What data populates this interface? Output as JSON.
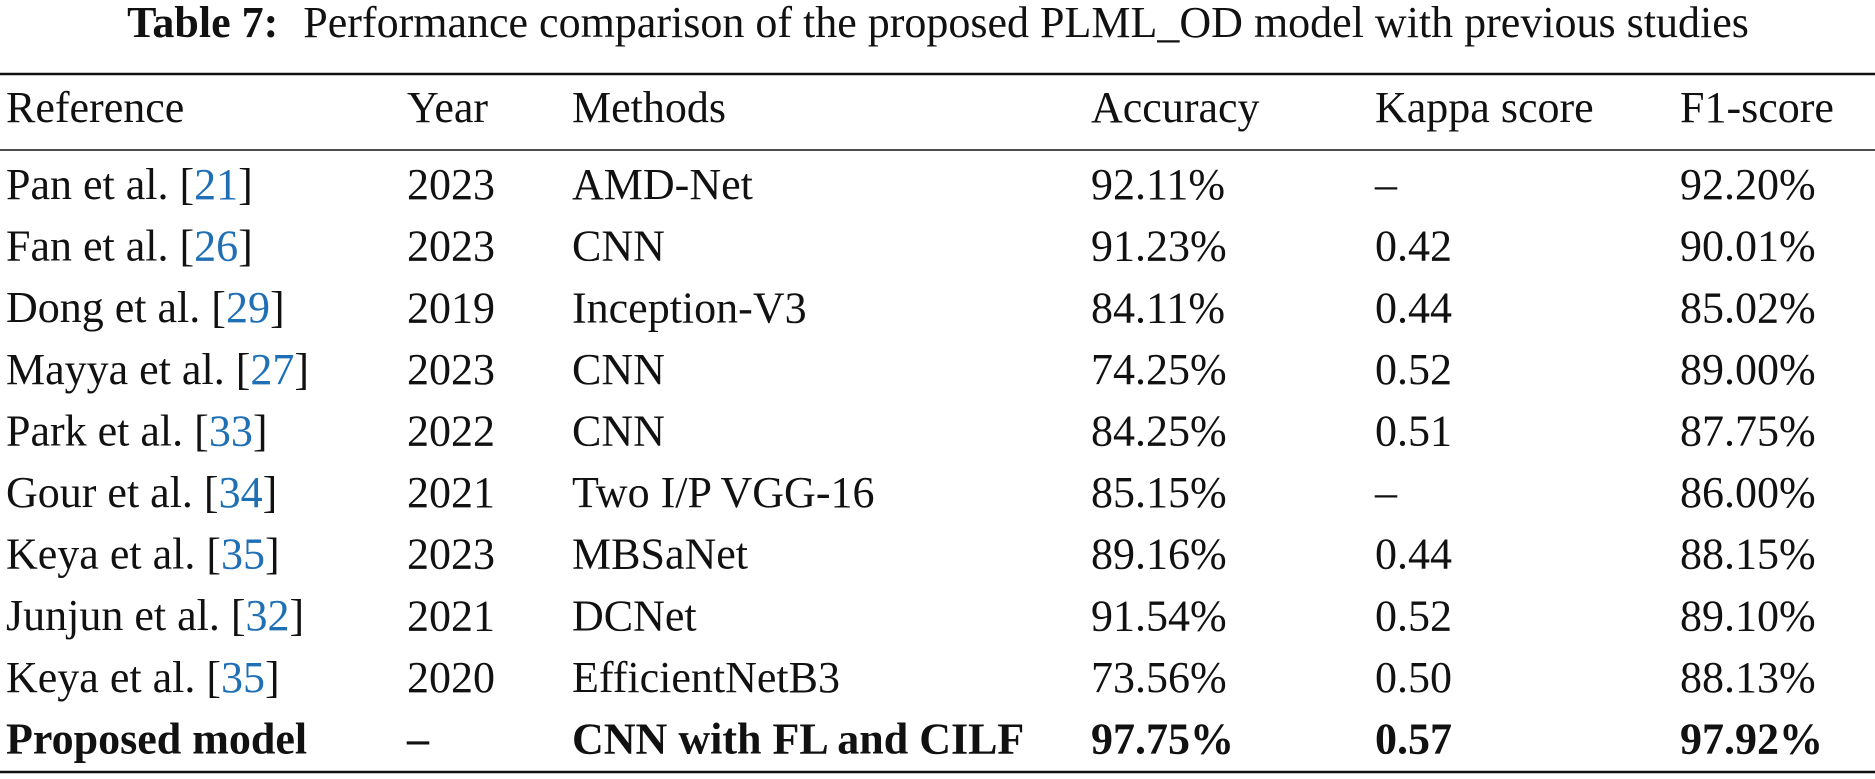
{
  "caption": {
    "label": "Table 7:",
    "text": "Performance comparison of the proposed PLML_OD model with previous studies"
  },
  "table": {
    "header": [
      "Reference",
      "Year",
      "Methods",
      "Accuracy",
      "Kappa score",
      "F1-score"
    ],
    "rows": [
      [
        [
          "Pan et al. [",
          "21",
          "]"
        ],
        "2023",
        "AMD-Net",
        "92.11%",
        "–",
        "92.20%"
      ],
      [
        [
          "Fan et al. [",
          "26",
          "]"
        ],
        "2023",
        "CNN",
        "91.23%",
        "0.42",
        "90.01%"
      ],
      [
        [
          "Dong et al. [",
          "29",
          "]"
        ],
        "2019",
        "Inception-V3",
        "84.11%",
        "0.44",
        "85.02%"
      ],
      [
        [
          "Mayya et al. [",
          "27",
          "]"
        ],
        "2023",
        "CNN",
        "74.25%",
        "0.52",
        "89.00%"
      ],
      [
        [
          "Park et al. [",
          "33",
          "]"
        ],
        "2022",
        "CNN",
        "84.25%",
        "0.51",
        "87.75%"
      ],
      [
        [
          "Gour et al. [",
          "34",
          "]"
        ],
        "2021",
        "Two I/P VGG-16",
        "85.15%",
        "–",
        "86.00%"
      ],
      [
        [
          "Keya et al. [",
          "35",
          "]"
        ],
        "2023",
        "MBSaNet",
        "89.16%",
        "0.44",
        "88.15%"
      ],
      [
        [
          "Junjun et al. [",
          "32",
          "]"
        ],
        "2021",
        "DCNet",
        "91.54%",
        "0.52",
        "89.10%"
      ],
      [
        [
          "Keya et al. [",
          "35",
          "]"
        ],
        "2020",
        "EfficientNetB3",
        "73.56%",
        "0.50",
        "88.13%"
      ],
      [
        [
          "Proposed model"
        ],
        "–",
        "CNN with FL and CILF",
        "97.75%",
        "0.57",
        "97.92%"
      ]
    ]
  }
}
